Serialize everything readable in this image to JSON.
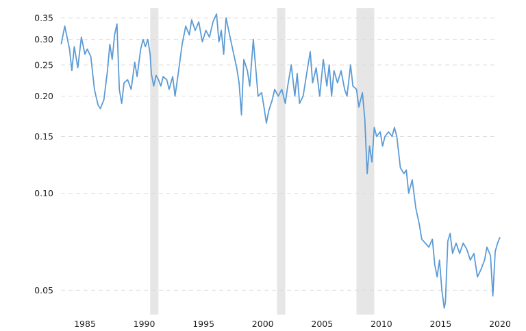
{
  "chart_data": {
    "type": "line",
    "title": "",
    "xlabel": "",
    "ylabel": "",
    "y_scale": "log",
    "xlim": [
      1983.0,
      2020.0
    ],
    "ylim": [
      0.042,
      0.375
    ],
    "grid": "horizontal-dashed",
    "legend": "none",
    "colors": {
      "line": "#5b9bd5",
      "recession": "#e6e6e6",
      "grid": "#dcdcdc"
    },
    "x_ticks": [
      {
        "value": 1985,
        "label": "1985"
      },
      {
        "value": 1990,
        "label": "1990"
      },
      {
        "value": 1995,
        "label": "1995"
      },
      {
        "value": 2000,
        "label": "2000"
      },
      {
        "value": 2005,
        "label": "2005"
      },
      {
        "value": 2010,
        "label": "2010"
      },
      {
        "value": 2015,
        "label": "2015"
      },
      {
        "value": 2020,
        "label": "2020"
      }
    ],
    "y_ticks": [
      {
        "value": 0.05,
        "label": "0.05"
      },
      {
        "value": 0.1,
        "label": "0.10"
      },
      {
        "value": 0.15,
        "label": "0.15"
      },
      {
        "value": 0.2,
        "label": "0.20"
      },
      {
        "value": 0.25,
        "label": "0.25"
      },
      {
        "value": 0.3,
        "label": "0.30"
      },
      {
        "value": 0.35,
        "label": "0.35"
      }
    ],
    "recessions": [
      {
        "start": 1990.5,
        "end": 1991.2
      },
      {
        "start": 2001.2,
        "end": 2001.9
      },
      {
        "start": 2007.9,
        "end": 2009.4
      },
      {
        "start": 2020.0,
        "end": 2020.4
      }
    ],
    "series": [
      {
        "points": [
          [
            1983.0,
            0.29
          ],
          [
            1983.3,
            0.33
          ],
          [
            1983.7,
            0.28
          ],
          [
            1983.9,
            0.24
          ],
          [
            1984.1,
            0.285
          ],
          [
            1984.4,
            0.245
          ],
          [
            1984.7,
            0.305
          ],
          [
            1985.0,
            0.27
          ],
          [
            1985.2,
            0.28
          ],
          [
            1985.5,
            0.265
          ],
          [
            1985.8,
            0.21
          ],
          [
            1986.1,
            0.188
          ],
          [
            1986.3,
            0.183
          ],
          [
            1986.6,
            0.195
          ],
          [
            1986.9,
            0.24
          ],
          [
            1987.1,
            0.29
          ],
          [
            1987.3,
            0.26
          ],
          [
            1987.5,
            0.31
          ],
          [
            1987.7,
            0.335
          ],
          [
            1987.9,
            0.21
          ],
          [
            1988.1,
            0.19
          ],
          [
            1988.3,
            0.22
          ],
          [
            1988.6,
            0.225
          ],
          [
            1988.9,
            0.21
          ],
          [
            1989.2,
            0.255
          ],
          [
            1989.4,
            0.23
          ],
          [
            1989.7,
            0.28
          ],
          [
            1989.9,
            0.3
          ],
          [
            1990.1,
            0.285
          ],
          [
            1990.3,
            0.3
          ],
          [
            1990.5,
            0.27
          ],
          [
            1990.6,
            0.235
          ],
          [
            1990.8,
            0.215
          ],
          [
            1991.0,
            0.232
          ],
          [
            1991.2,
            0.225
          ],
          [
            1991.4,
            0.215
          ],
          [
            1991.6,
            0.23
          ],
          [
            1991.9,
            0.225
          ],
          [
            1992.1,
            0.21
          ],
          [
            1992.4,
            0.23
          ],
          [
            1992.6,
            0.2
          ],
          [
            1992.9,
            0.24
          ],
          [
            1993.2,
            0.29
          ],
          [
            1993.5,
            0.33
          ],
          [
            1993.8,
            0.31
          ],
          [
            1994.0,
            0.345
          ],
          [
            1994.3,
            0.32
          ],
          [
            1994.6,
            0.34
          ],
          [
            1994.9,
            0.295
          ],
          [
            1995.2,
            0.32
          ],
          [
            1995.5,
            0.305
          ],
          [
            1995.8,
            0.34
          ],
          [
            1996.1,
            0.36
          ],
          [
            1996.3,
            0.295
          ],
          [
            1996.5,
            0.32
          ],
          [
            1996.7,
            0.27
          ],
          [
            1996.9,
            0.35
          ],
          [
            1997.2,
            0.31
          ],
          [
            1997.5,
            0.275
          ],
          [
            1997.8,
            0.245
          ],
          [
            1998.0,
            0.22
          ],
          [
            1998.2,
            0.175
          ],
          [
            1998.4,
            0.26
          ],
          [
            1998.7,
            0.24
          ],
          [
            1998.9,
            0.215
          ],
          [
            1999.2,
            0.3
          ],
          [
            1999.4,
            0.245
          ],
          [
            1999.6,
            0.2
          ],
          [
            1999.9,
            0.205
          ],
          [
            2000.1,
            0.185
          ],
          [
            2000.3,
            0.165
          ],
          [
            2000.5,
            0.18
          ],
          [
            2000.8,
            0.195
          ],
          [
            2001.0,
            0.21
          ],
          [
            2001.3,
            0.2
          ],
          [
            2001.6,
            0.21
          ],
          [
            2001.9,
            0.19
          ],
          [
            2002.1,
            0.215
          ],
          [
            2002.4,
            0.25
          ],
          [
            2002.7,
            0.2
          ],
          [
            2002.9,
            0.235
          ],
          [
            2003.1,
            0.19
          ],
          [
            2003.4,
            0.2
          ],
          [
            2003.7,
            0.235
          ],
          [
            2004.0,
            0.275
          ],
          [
            2004.2,
            0.22
          ],
          [
            2004.5,
            0.245
          ],
          [
            2004.8,
            0.2
          ],
          [
            2005.1,
            0.26
          ],
          [
            2005.4,
            0.215
          ],
          [
            2005.6,
            0.25
          ],
          [
            2005.8,
            0.2
          ],
          [
            2006.0,
            0.24
          ],
          [
            2006.3,
            0.22
          ],
          [
            2006.6,
            0.24
          ],
          [
            2006.9,
            0.21
          ],
          [
            2007.1,
            0.2
          ],
          [
            2007.4,
            0.25
          ],
          [
            2007.6,
            0.215
          ],
          [
            2007.9,
            0.21
          ],
          [
            2008.1,
            0.185
          ],
          [
            2008.4,
            0.205
          ],
          [
            2008.6,
            0.17
          ],
          [
            2008.8,
            0.115
          ],
          [
            2009.0,
            0.14
          ],
          [
            2009.2,
            0.125
          ],
          [
            2009.4,
            0.16
          ],
          [
            2009.6,
            0.15
          ],
          [
            2009.9,
            0.155
          ],
          [
            2010.1,
            0.14
          ],
          [
            2010.3,
            0.15
          ],
          [
            2010.6,
            0.155
          ],
          [
            2010.9,
            0.15
          ],
          [
            2011.1,
            0.16
          ],
          [
            2011.3,
            0.15
          ],
          [
            2011.6,
            0.12
          ],
          [
            2011.9,
            0.115
          ],
          [
            2012.1,
            0.118
          ],
          [
            2012.3,
            0.1
          ],
          [
            2012.6,
            0.11
          ],
          [
            2012.9,
            0.09
          ],
          [
            2013.2,
            0.08
          ],
          [
            2013.4,
            0.072
          ],
          [
            2013.7,
            0.07
          ],
          [
            2014.0,
            0.068
          ],
          [
            2014.3,
            0.072
          ],
          [
            2014.5,
            0.06
          ],
          [
            2014.7,
            0.055
          ],
          [
            2014.9,
            0.062
          ],
          [
            2015.1,
            0.05
          ],
          [
            2015.3,
            0.044
          ],
          [
            2015.4,
            0.046
          ],
          [
            2015.6,
            0.071
          ],
          [
            2015.8,
            0.075
          ],
          [
            2016.0,
            0.065
          ],
          [
            2016.3,
            0.07
          ],
          [
            2016.6,
            0.065
          ],
          [
            2016.9,
            0.07
          ],
          [
            2017.2,
            0.067
          ],
          [
            2017.5,
            0.062
          ],
          [
            2017.8,
            0.065
          ],
          [
            2018.1,
            0.055
          ],
          [
            2018.4,
            0.058
          ],
          [
            2018.7,
            0.062
          ],
          [
            2018.9,
            0.068
          ],
          [
            2019.2,
            0.064
          ],
          [
            2019.4,
            0.048
          ],
          [
            2019.6,
            0.066
          ],
          [
            2019.8,
            0.07
          ],
          [
            2020.0,
            0.073
          ]
        ]
      }
    ]
  }
}
